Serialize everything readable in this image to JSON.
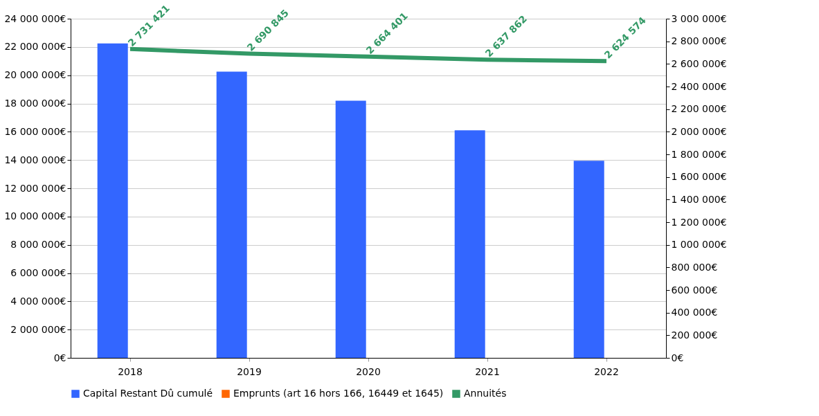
{
  "chart_data": {
    "type": "bar",
    "categories": [
      "2018",
      "2019",
      "2020",
      "2021",
      "2022"
    ],
    "series": [
      {
        "name": "Capital Restant Dû cumulé",
        "color": "#3366ff",
        "values": [
          22250000,
          20250000,
          18200000,
          16100000,
          13950000
        ]
      },
      {
        "name": "Emprunts (art 16 hors 166, 16449 et 1645)",
        "color": "#ff6600",
        "values": [
          0,
          0,
          0,
          0,
          0
        ]
      },
      {
        "name": "Annuités",
        "type": "line",
        "axis": "y2",
        "color": "#339966",
        "values": [
          2731421,
          2690845,
          2664401,
          2637862,
          2624574
        ],
        "value_labels": [
          "2 731 421",
          "2 690 845",
          "2 664 401",
          "2 637 862",
          "2 624 574"
        ]
      }
    ],
    "ylim": [
      0,
      24000000
    ],
    "yticks": [
      {
        "value": 0,
        "label": "0€"
      },
      {
        "value": 2000000,
        "label": "2 000 000€"
      },
      {
        "value": 4000000,
        "label": "4 000 000€"
      },
      {
        "value": 6000000,
        "label": "6 000 000€"
      },
      {
        "value": 8000000,
        "label": "8 000 000€"
      },
      {
        "value": 10000000,
        "label": "10 000 000€"
      },
      {
        "value": 12000000,
        "label": "12 000 000€"
      },
      {
        "value": 14000000,
        "label": "14 000 000€"
      },
      {
        "value": 16000000,
        "label": "16 000 000€"
      },
      {
        "value": 18000000,
        "label": "18 000 000€"
      },
      {
        "value": 20000000,
        "label": "20 000 000€"
      },
      {
        "value": 22000000,
        "label": "22 000 000€"
      },
      {
        "value": 24000000,
        "label": "24 000 000€"
      }
    ],
    "y2lim": [
      0,
      3000000
    ],
    "y2ticks": [
      {
        "value": 0,
        "label": "0€"
      },
      {
        "value": 200000,
        "label": "200 000€"
      },
      {
        "value": 400000,
        "label": "400 000€"
      },
      {
        "value": 600000,
        "label": "600 000€"
      },
      {
        "value": 800000,
        "label": "800 000€"
      },
      {
        "value": 1000000,
        "label": "1 000 000€"
      },
      {
        "value": 1200000,
        "label": "1 200 000€"
      },
      {
        "value": 1400000,
        "label": "1 400 000€"
      },
      {
        "value": 1600000,
        "label": "1 600 000€"
      },
      {
        "value": 1800000,
        "label": "1 800 000€"
      },
      {
        "value": 2000000,
        "label": "2 000 000€"
      },
      {
        "value": 2200000,
        "label": "2 200 000€"
      },
      {
        "value": 2400000,
        "label": "2 400 000€"
      },
      {
        "value": 2600000,
        "label": "2 600 000€"
      },
      {
        "value": 2800000,
        "label": "2 800 000€"
      },
      {
        "value": 3000000,
        "label": "3 000 000€"
      }
    ],
    "grid": "y",
    "legend": "bottom",
    "marker": "none",
    "line_style": "solid"
  }
}
